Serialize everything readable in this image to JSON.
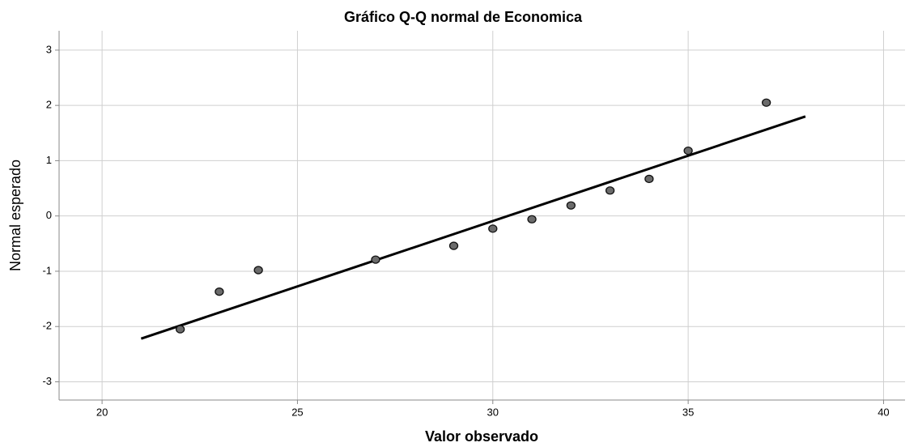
{
  "chart_data": {
    "type": "scatter",
    "title": "Gráfico Q-Q normal de Economica",
    "x_label": "Valor observado",
    "y_label": "Normal esperado",
    "series": [
      {
        "name": "Economica",
        "color": "#6b6b6b",
        "x": [
          22,
          23,
          24,
          27,
          29,
          30,
          31,
          32,
          33,
          34,
          35,
          37
        ],
        "values": [
          -2.05,
          -1.37,
          -0.98,
          -0.79,
          -0.54,
          -0.23,
          -0.06,
          0.19,
          0.46,
          0.67,
          1.18,
          2.05
        ]
      }
    ],
    "reference_line": {
      "color": "#000000",
      "x": [
        21,
        38
      ],
      "values": [
        -2.22,
        1.8
      ]
    },
    "xlim": [
      18.9,
      40.55
    ],
    "xticks": [
      20,
      25,
      30,
      35,
      40
    ],
    "ylim": [
      -3.33,
      3.35
    ],
    "yticks": [
      -3,
      -2,
      -1,
      0,
      1,
      2,
      3
    ],
    "grid": true
  }
}
